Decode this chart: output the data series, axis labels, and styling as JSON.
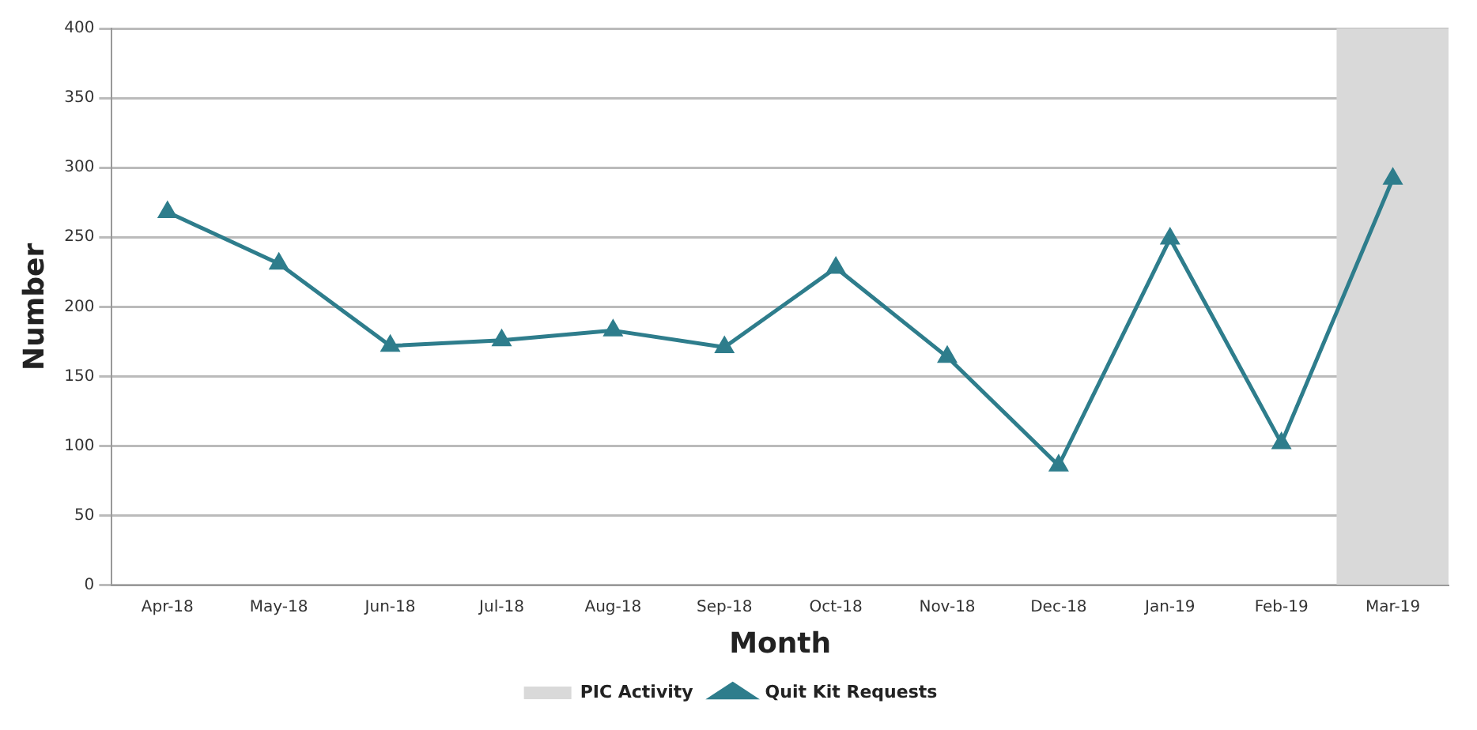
{
  "chart_data": {
    "type": "line",
    "xlabel": "Month",
    "ylabel": "Number",
    "categories": [
      "Apr-18",
      "May-18",
      "Jun-18",
      "Jul-18",
      "Aug-18",
      "Sep-18",
      "Oct-18",
      "Nov-18",
      "Dec-18",
      "Jan-19",
      "Feb-19",
      "Mar-19"
    ],
    "series": [
      {
        "name": "PIC Activity",
        "type": "bar",
        "color": "#d9d9d9",
        "values": [
          null,
          null,
          null,
          null,
          null,
          null,
          null,
          null,
          null,
          null,
          null,
          400
        ]
      },
      {
        "name": "Quit Kit Requests",
        "color": "#2e7d8c",
        "values": [
          268,
          231,
          172,
          176,
          183,
          171,
          228,
          164,
          86,
          249,
          102,
          292
        ]
      }
    ],
    "ylim": [
      0,
      400
    ],
    "yticks": [
      0,
      50,
      100,
      150,
      200,
      250,
      300,
      350,
      400
    ],
    "grid": "y",
    "legend": "bottom",
    "marker": "triangle",
    "line_style": "solid"
  }
}
